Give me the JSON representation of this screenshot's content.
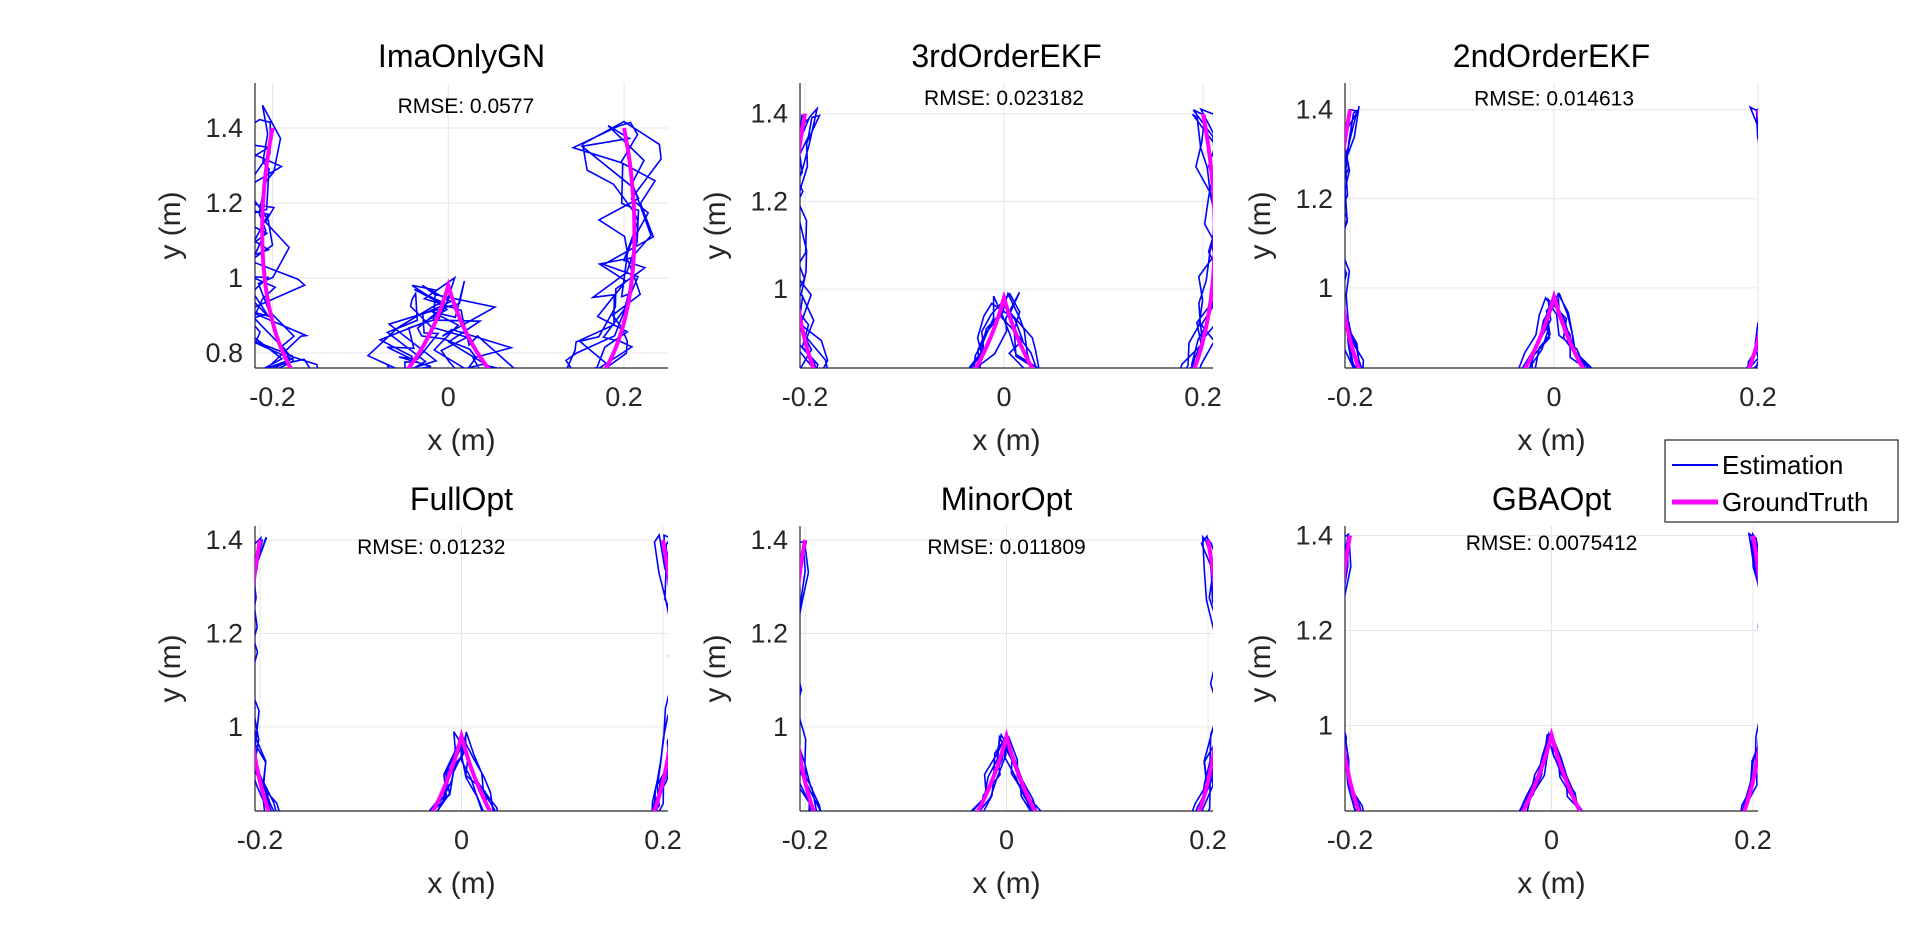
{
  "colors": {
    "estimation": "#0000ff",
    "ground_truth": "#ff00ff",
    "grid": "#e6e6e6",
    "axis": "#262626"
  },
  "legend": {
    "placement": "right, between rows",
    "entries": [
      "Estimation",
      "GroundTruth"
    ]
  },
  "chart_data": [
    {
      "type": "line",
      "title": "ImaOnlyGN",
      "xlabel": "x (m)",
      "ylabel": "y (m)",
      "xlim": [
        -0.22,
        0.25
      ],
      "ylim": [
        0.76,
        1.52
      ],
      "xticks": [
        "-0.2",
        "0",
        "0.2"
      ],
      "yticks": [
        "0.8",
        "1",
        "1.2",
        "1.4"
      ],
      "ytick_values": [
        0.8,
        1.0,
        1.2,
        1.4
      ],
      "annotation": "RMSE: 0.0577",
      "annotation_at": [
        0.02,
        1.44
      ],
      "noise": 0.06,
      "seed": 11,
      "grid": true,
      "series": [
        {
          "name": "Estimation"
        },
        {
          "name": "GroundTruth"
        }
      ]
    },
    {
      "type": "line",
      "title": "3rdOrderEKF",
      "xlabel": "x (m)",
      "ylabel": "y (m)",
      "xlim": [
        -0.205,
        0.21
      ],
      "ylim": [
        0.82,
        1.47
      ],
      "xticks": [
        "-0.2",
        "0",
        "0.2"
      ],
      "yticks": [
        "1",
        "1.2",
        "1.4"
      ],
      "ytick_values": [
        1.0,
        1.2,
        1.4
      ],
      "annotation": "RMSE: 0.023182",
      "annotation_at": [
        0.0,
        1.42
      ],
      "noise": 0.018,
      "seed": 23,
      "grid": true,
      "series": [
        {
          "name": "Estimation"
        },
        {
          "name": "GroundTruth"
        }
      ]
    },
    {
      "type": "line",
      "title": "2ndOrderEKF",
      "xlabel": "x (m)",
      "ylabel": "y (m)",
      "xlim": [
        -0.205,
        0.2
      ],
      "ylim": [
        0.82,
        1.46
      ],
      "xticks": [
        "-0.2",
        "0",
        "0.2"
      ],
      "yticks": [
        "1",
        "1.2",
        "1.4"
      ],
      "ytick_values": [
        1.0,
        1.2,
        1.4
      ],
      "annotation": "RMSE: 0.014613",
      "annotation_at": [
        0.0,
        1.41
      ],
      "noise": 0.012,
      "seed": 37,
      "grid": true,
      "series": [
        {
          "name": "Estimation"
        },
        {
          "name": "GroundTruth"
        }
      ]
    },
    {
      "type": "line",
      "title": "FullOpt",
      "xlabel": "x (m)",
      "ylabel": "y (m)",
      "xlim": [
        -0.205,
        0.205
      ],
      "ylim": [
        0.82,
        1.43
      ],
      "xticks": [
        "-0.2",
        "0",
        "0.2"
      ],
      "yticks": [
        "1",
        "1.2",
        "1.4"
      ],
      "ytick_values": [
        1.0,
        1.2,
        1.4
      ],
      "annotation": "RMSE: 0.01232",
      "annotation_at": [
        -0.03,
        1.37
      ],
      "noise": 0.011,
      "seed": 41,
      "grid": true,
      "series": [
        {
          "name": "Estimation"
        },
        {
          "name": "GroundTruth"
        }
      ]
    },
    {
      "type": "line",
      "title": "MinorOpt",
      "xlabel": "x (m)",
      "ylabel": "y (m)",
      "xlim": [
        -0.205,
        0.205
      ],
      "ylim": [
        0.82,
        1.43
      ],
      "xticks": [
        "-0.2",
        "0",
        "0.2"
      ],
      "yticks": [
        "1",
        "1.2",
        "1.4"
      ],
      "ytick_values": [
        1.0,
        1.2,
        1.4
      ],
      "annotation": "RMSE: 0.011809",
      "annotation_at": [
        0.0,
        1.37
      ],
      "noise": 0.01,
      "seed": 53,
      "grid": true,
      "series": [
        {
          "name": "Estimation"
        },
        {
          "name": "GroundTruth"
        }
      ]
    },
    {
      "type": "line",
      "title": "GBAOpt",
      "xlabel": "x (m)",
      "ylabel": "y (m)",
      "xlim": [
        -0.205,
        0.205
      ],
      "ylim": [
        0.82,
        1.42
      ],
      "xticks": [
        "-0.2",
        "0",
        "0.2"
      ],
      "yticks": [
        "1",
        "1.2",
        "1.4"
      ],
      "ytick_values": [
        1.0,
        1.2,
        1.4
      ],
      "annotation": "RMSE: 0.0075412",
      "annotation_at": [
        0.0,
        1.37
      ],
      "noise": 0.006,
      "seed": 67,
      "grid": true,
      "series": [
        {
          "name": "Estimation"
        },
        {
          "name": "GroundTruth"
        }
      ]
    }
  ]
}
